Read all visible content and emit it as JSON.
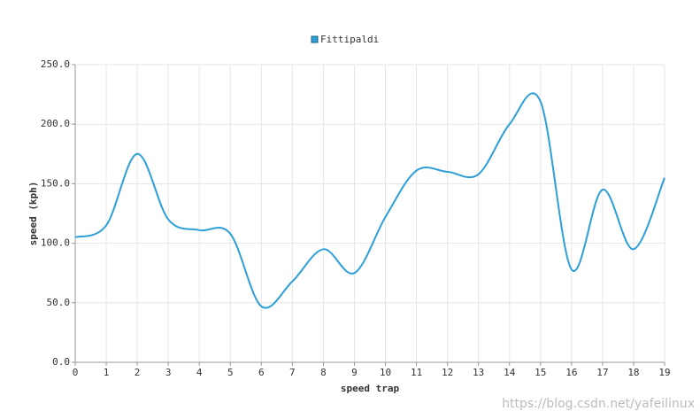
{
  "chart_data": {
    "type": "line",
    "x_label": "speed trap",
    "y_label": "speed (kph)",
    "x": [
      0,
      1,
      2,
      3,
      4,
      5,
      6,
      7,
      8,
      9,
      10,
      11,
      12,
      13,
      14,
      15,
      16,
      17,
      18,
      19
    ],
    "series": [
      {
        "name": "Fittipaldi",
        "color": "#2c9fd8",
        "values": [
          105,
          115,
          175,
          120,
          111,
          108,
          47,
          68,
          95,
          75,
          122,
          161,
          160,
          158,
          200,
          219,
          78,
          145,
          95,
          155
        ]
      }
    ],
    "xlim": [
      0,
      19
    ],
    "xticks": [
      0,
      1,
      2,
      3,
      4,
      5,
      6,
      7,
      8,
      9,
      10,
      11,
      12,
      13,
      14,
      15,
      16,
      17,
      18,
      19
    ],
    "ylim": [
      0,
      250
    ],
    "yticks": [
      {
        "value": 0,
        "label": "0.0"
      },
      {
        "value": 50,
        "label": "50.0"
      },
      {
        "value": 100,
        "label": "100.0"
      },
      {
        "value": 150,
        "label": "150.0"
      },
      {
        "value": 200,
        "label": "200.0"
      },
      {
        "value": 250,
        "label": "250.0"
      }
    ],
    "grid": true,
    "legend": "top",
    "watermark": "https://blog.csdn.net/yafeilinux"
  }
}
